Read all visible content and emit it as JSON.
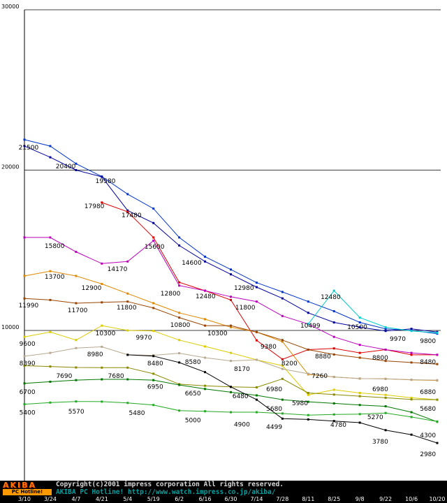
{
  "chart_data": {
    "type": "line",
    "title": "",
    "xlabel": "",
    "ylabel": "",
    "ylim": [
      0,
      30000
    ],
    "grid": "horizontal",
    "legend": "none",
    "x_labels": [
      "3/10",
      "3/24",
      "4/7",
      "4/21",
      "5/4",
      "5/19",
      "6/2",
      "6/16",
      "6/30",
      "7/14",
      "7/28",
      "8/11",
      "8/25",
      "9/8",
      "9/22",
      "10/6",
      "10/20"
    ],
    "yticks": [
      10000,
      20000,
      30000
    ],
    "ytick_labels": [
      "10000",
      "20000",
      "30000"
    ],
    "series": [
      {
        "name": "blue-1",
        "color": "#0033cc",
        "values": [
          21900,
          21500,
          20400,
          19600,
          18500,
          17600,
          15800,
          14600,
          13800,
          12980,
          12400,
          11800,
          11200,
          10500,
          10100,
          10000,
          9800
        ]
      },
      {
        "name": "blue-2",
        "color": "#000099",
        "values": [
          21500,
          20800,
          20000,
          19580,
          17480,
          16700,
          15300,
          14300,
          13500,
          12700,
          12000,
          11100,
          10499,
          10200,
          9970,
          10100,
          9900
        ]
      },
      {
        "name": "red",
        "color": "#dd0000",
        "values": [
          null,
          null,
          null,
          17980,
          17400,
          15800,
          13000,
          12480,
          11900,
          9380,
          8200,
          8800,
          8880,
          8600,
          8800,
          8480,
          8480
        ]
      },
      {
        "name": "magenta",
        "color": "#bb00bb",
        "values": [
          15800,
          15800,
          14900,
          14170,
          14300,
          15600,
          12800,
          12480,
          12100,
          11800,
          10900,
          10400,
          9600,
          9100,
          8800,
          8600,
          8480
        ]
      },
      {
        "name": "orange",
        "color": "#dd8800",
        "values": [
          13400,
          13700,
          13400,
          12900,
          12300,
          11700,
          11100,
          10700,
          10200,
          9900,
          9300,
          7260,
          7100,
          7000,
          6980,
          6920,
          6880
        ]
      },
      {
        "name": "brown",
        "color": "#994400",
        "values": [
          11990,
          11900,
          11700,
          11750,
          11800,
          11400,
          10800,
          10300,
          10300,
          9900,
          9400,
          8800,
          8500,
          8300,
          8100,
          8000,
          7900
        ]
      },
      {
        "name": "yellow",
        "color": "#ddcc00",
        "values": [
          9600,
          9900,
          9400,
          10300,
          10000,
          9970,
          9400,
          9000,
          8600,
          8170,
          7800,
          5980,
          6300,
          6100,
          5980,
          5800,
          5680
        ]
      },
      {
        "name": "tan",
        "color": "#b8a890",
        "values": [
          8390,
          8600,
          8900,
          8980,
          8480,
          8450,
          8580,
          8300,
          8100,
          8170,
          7600,
          7300,
          7100,
          7000,
          6980,
          6930,
          6900
        ]
      },
      {
        "name": "olive",
        "color": "#8a8a00",
        "values": [
          7800,
          7750,
          7690,
          7680,
          7680,
          7300,
          6650,
          6550,
          6480,
          6450,
          6980,
          6100,
          6000,
          5900,
          5800,
          5700,
          5680
        ]
      },
      {
        "name": "green-dark",
        "color": "#007700",
        "values": [
          6700,
          6800,
          6900,
          6950,
          6950,
          6900,
          6600,
          6350,
          6150,
          5950,
          5680,
          5550,
          5450,
          5350,
          5270,
          4900,
          4300
        ]
      },
      {
        "name": "green",
        "color": "#22aa22",
        "values": [
          5400,
          5500,
          5570,
          5560,
          5480,
          5350,
          5000,
          4960,
          4900,
          4900,
          4820,
          4720,
          4760,
          4780,
          4850,
          4600,
          4320
        ]
      },
      {
        "name": "black",
        "color": "#000000",
        "values": [
          null,
          null,
          null,
          null,
          8480,
          8400,
          8000,
          7400,
          6480,
          5680,
          4499,
          4450,
          4350,
          4250,
          3780,
          3500,
          2980
        ]
      },
      {
        "name": "cyan",
        "color": "#00cccc",
        "values": [
          null,
          null,
          null,
          null,
          null,
          null,
          null,
          null,
          null,
          null,
          null,
          10400,
          12480,
          10800,
          10200,
          9970,
          9850
        ]
      }
    ],
    "annotations": [
      {
        "text": "21500",
        "xi": 0.16,
        "v": 21420
      },
      {
        "text": "20400",
        "xi": 1.6,
        "v": 20240
      },
      {
        "text": "19580",
        "xi": 3.14,
        "v": 19330
      },
      {
        "text": "17980",
        "xi": 2.71,
        "v": 17760
      },
      {
        "text": "17480",
        "xi": 4.15,
        "v": 17190
      },
      {
        "text": "15800",
        "xi": 1.17,
        "v": 15270
      },
      {
        "text": "15600",
        "xi": 5.04,
        "v": 15230
      },
      {
        "text": "14600",
        "xi": 6.48,
        "v": 14230
      },
      {
        "text": "14170",
        "xi": 3.6,
        "v": 13830
      },
      {
        "text": "13700",
        "xi": 1.17,
        "v": 13350
      },
      {
        "text": "12900",
        "xi": 2.6,
        "v": 12660
      },
      {
        "text": "12800",
        "xi": 5.66,
        "v": 12310
      },
      {
        "text": "12980",
        "xi": 8.51,
        "v": 12660
      },
      {
        "text": "12480",
        "xi": 7.02,
        "v": 12140
      },
      {
        "text": "12480",
        "xi": 11.87,
        "v": 12100
      },
      {
        "text": "11990",
        "xi": 0.16,
        "v": 11570
      },
      {
        "text": "11700",
        "xi": 2.06,
        "v": 11270
      },
      {
        "text": "11800",
        "xi": 3.96,
        "v": 11440
      },
      {
        "text": "11800",
        "xi": 8.56,
        "v": 11440
      },
      {
        "text": "10800",
        "xi": 6.04,
        "v": 10350
      },
      {
        "text": "10300",
        "xi": 3.14,
        "v": 9830
      },
      {
        "text": "10300",
        "xi": 7.48,
        "v": 9830
      },
      {
        "text": "10499",
        "xi": 11.08,
        "v": 10310
      },
      {
        "text": "10500",
        "xi": 12.9,
        "v": 10220
      },
      {
        "text": "9970",
        "xi": 4.63,
        "v": 9570
      },
      {
        "text": "9970",
        "xi": 14.47,
        "v": 9480
      },
      {
        "text": "9800",
        "xi": 15.64,
        "v": 9350
      },
      {
        "text": "9600",
        "xi": 0.11,
        "v": 9170
      },
      {
        "text": "9380",
        "xi": 9.46,
        "v": 9000
      },
      {
        "text": "8980",
        "xi": 2.74,
        "v": 8520
      },
      {
        "text": "8390",
        "xi": 0.11,
        "v": 7950
      },
      {
        "text": "8480",
        "xi": 5.07,
        "v": 7950
      },
      {
        "text": "8580",
        "xi": 6.53,
        "v": 8040
      },
      {
        "text": "8800",
        "xi": 13.79,
        "v": 8300
      },
      {
        "text": "8880",
        "xi": 11.57,
        "v": 8390
      },
      {
        "text": "8480",
        "xi": 15.64,
        "v": 8040
      },
      {
        "text": "8200",
        "xi": 10.27,
        "v": 7950
      },
      {
        "text": "8170",
        "xi": 8.43,
        "v": 7600
      },
      {
        "text": "7690",
        "xi": 1.54,
        "v": 7160
      },
      {
        "text": "7680",
        "xi": 3.55,
        "v": 7160
      },
      {
        "text": "7260",
        "xi": 11.44,
        "v": 7160
      },
      {
        "text": "6980",
        "xi": 9.68,
        "v": 6330
      },
      {
        "text": "6980",
        "xi": 13.79,
        "v": 6330
      },
      {
        "text": "6880",
        "xi": 15.64,
        "v": 6160
      },
      {
        "text": "6950",
        "xi": 5.07,
        "v": 6500
      },
      {
        "text": "6700",
        "xi": 0.11,
        "v": 6160
      },
      {
        "text": "6650",
        "xi": 6.53,
        "v": 6070
      },
      {
        "text": "6480",
        "xi": 8.37,
        "v": 5900
      },
      {
        "text": "5980",
        "xi": 10.68,
        "v": 5460
      },
      {
        "text": "5680",
        "xi": 9.68,
        "v": 5110
      },
      {
        "text": "5680",
        "xi": 15.64,
        "v": 5110
      },
      {
        "text": "5270",
        "xi": 13.6,
        "v": 4590
      },
      {
        "text": "5570",
        "xi": 2.01,
        "v": 4940
      },
      {
        "text": "5480",
        "xi": 4.36,
        "v": 4850
      },
      {
        "text": "5400",
        "xi": 0.11,
        "v": 4890
      },
      {
        "text": "5000",
        "xi": 6.53,
        "v": 4410
      },
      {
        "text": "4900",
        "xi": 8.43,
        "v": 4150
      },
      {
        "text": "4499",
        "xi": 9.68,
        "v": 3980
      },
      {
        "text": "4780",
        "xi": 12.17,
        "v": 4110
      },
      {
        "text": "4300",
        "xi": 15.64,
        "v": 3460
      },
      {
        "text": "3780",
        "xi": 13.79,
        "v": 3070
      },
      {
        "text": "2980",
        "xi": 15.64,
        "v": 2290
      }
    ]
  },
  "footer": {
    "logo_top": "AKIBA",
    "logo_bottom": "PC Hotline!",
    "copyright": "Copyright(c)2001 impress corporation All rights reserved.",
    "site_line": "AKIBA PC Hotline!  http://www.watch.impress.co.jp/akiba/"
  }
}
